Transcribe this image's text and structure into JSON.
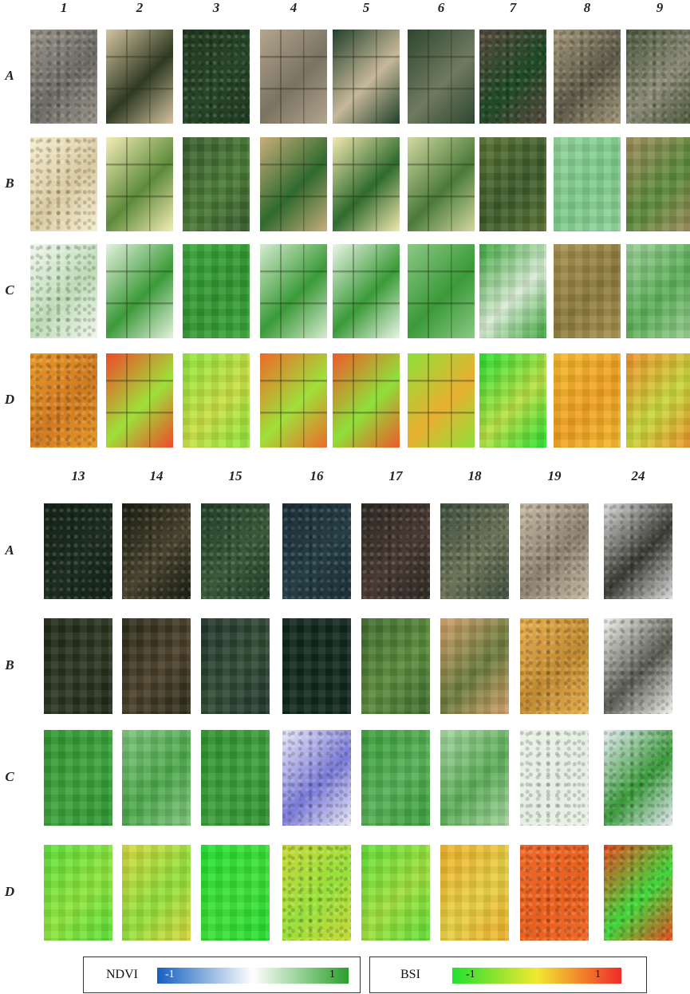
{
  "top_panel": {
    "columns": [
      "1",
      "2",
      "3",
      "4",
      "5",
      "6",
      "7",
      "8",
      "9"
    ],
    "rows": [
      "A",
      "B",
      "C",
      "D"
    ],
    "tiles": {
      "A": [
        {
          "c1": "#9a968c",
          "c2": "#6e6c66",
          "tex": "spk"
        },
        {
          "c1": "#d4c3a0",
          "c2": "#2e3a22",
          "tex": "fld"
        },
        {
          "c1": "#1f3a20",
          "c2": "#284628",
          "tex": "spk"
        },
        {
          "c1": "#b3a58e",
          "c2": "#7a7262",
          "tex": "fld"
        },
        {
          "c1": "#20402a",
          "c2": "#c7b89a",
          "tex": "fld"
        },
        {
          "c1": "#2e4630",
          "c2": "#6f7a60",
          "tex": "fld"
        },
        {
          "c1": "#5a4a40",
          "c2": "#1f4a25",
          "tex": "spk"
        },
        {
          "c1": "#a69a7c",
          "c2": "#5d5a48",
          "tex": "spk"
        },
        {
          "c1": "#4e5a3e",
          "c2": "#8c8c78",
          "tex": "spk"
        }
      ],
      "B": [
        {
          "c1": "#f7efd2",
          "c2": "#d9caa0",
          "tex": "spk"
        },
        {
          "c1": "#f4edb6",
          "c2": "#5d8a3a",
          "tex": "fld"
        },
        {
          "c1": "#355a2a",
          "c2": "#4a7a36",
          "tex": "pix"
        },
        {
          "c1": "#c8ad7a",
          "c2": "#2f6a2e",
          "tex": "fld"
        },
        {
          "c1": "#f2e8b0",
          "c2": "#2f6a2e",
          "tex": "fld"
        },
        {
          "c1": "#d2d8a0",
          "c2": "#4a7a3a",
          "tex": "fld"
        },
        {
          "c1": "#5a7030",
          "c2": "#3a5a28",
          "tex": "pix"
        },
        {
          "c1": "#8fd39a",
          "c2": "#7ecb8a",
          "tex": "pix"
        },
        {
          "c1": "#9e8a5a",
          "c2": "#5a8a3a",
          "tex": "pix"
        }
      ],
      "C": [
        {
          "c1": "#f2f7ef",
          "c2": "#bcdcb4",
          "tex": "spk"
        },
        {
          "c1": "#e4f1de",
          "c2": "#3c9a3a",
          "tex": "fld"
        },
        {
          "c1": "#3aa63a",
          "c2": "#2e962e",
          "tex": "pix"
        },
        {
          "c1": "#d6ebd0",
          "c2": "#3a9a38",
          "tex": "fld"
        },
        {
          "c1": "#eaf4e6",
          "c2": "#3a9a38",
          "tex": "fld"
        },
        {
          "c1": "#8cc886",
          "c2": "#3a9a38",
          "tex": "fld"
        },
        {
          "c1": "#3aa63a",
          "c2": "#d8ecd4",
          "tex": "pix"
        },
        {
          "c1": "#a8904e",
          "c2": "#8c7a3a",
          "tex": "pix"
        },
        {
          "c1": "#9ccf96",
          "c2": "#5aaf56",
          "tex": "pix"
        }
      ],
      "D": [
        {
          "c1": "#e89a2a",
          "c2": "#d07a20",
          "tex": "spk"
        },
        {
          "c1": "#ee4a2a",
          "c2": "#9ee03a",
          "tex": "fld"
        },
        {
          "c1": "#8ee83a",
          "c2": "#c8e040",
          "tex": "pix"
        },
        {
          "c1": "#ee6a2a",
          "c2": "#9ee03a",
          "tex": "fld"
        },
        {
          "c1": "#ee5a2a",
          "c2": "#8ee03a",
          "tex": "fld"
        },
        {
          "c1": "#8ee03a",
          "c2": "#e8b030",
          "tex": "fld"
        },
        {
          "c1": "#22e030",
          "c2": "#b8e040",
          "tex": "pix"
        },
        {
          "c1": "#f5b82a",
          "c2": "#f0a020",
          "tex": "pix"
        },
        {
          "c1": "#f0902a",
          "c2": "#c8d838",
          "tex": "pix"
        }
      ]
    }
  },
  "bottom_panel": {
    "columns": [
      "13",
      "14",
      "15",
      "16",
      "17",
      "18",
      "19",
      "24"
    ],
    "rows": [
      "A",
      "B",
      "C",
      "D"
    ],
    "tiles": {
      "A": [
        {
          "c1": "#142218",
          "c2": "#1e2e20",
          "tex": "spk"
        },
        {
          "c1": "#1a1e12",
          "c2": "#4a4430",
          "tex": "spk"
        },
        {
          "c1": "#24402a",
          "c2": "#3a5a3a",
          "tex": "spk"
        },
        {
          "c1": "#1c3038",
          "c2": "#263e46",
          "tex": "spk"
        },
        {
          "c1": "#2e2a24",
          "c2": "#4a3a34",
          "tex": "spk"
        },
        {
          "c1": "#3e5040",
          "c2": "#6e7458",
          "tex": "spk"
        },
        {
          "c1": "#c8bca6",
          "c2": "#8e8270",
          "tex": "spk"
        },
        {
          "c1": "#dcdcdc",
          "c2": "#3a3a34",
          "tex": "spk"
        }
      ],
      "B": [
        {
          "c1": "#1e2816",
          "c2": "#2a3420",
          "tex": "pix"
        },
        {
          "c1": "#2a2a18",
          "c2": "#4a3e28",
          "tex": "pix"
        },
        {
          "c1": "#22342a",
          "c2": "#2e4a32",
          "tex": "pix"
        },
        {
          "c1": "#0e2418",
          "c2": "#10281c",
          "tex": "pix"
        },
        {
          "c1": "#3e6a2e",
          "c2": "#5a8a3a",
          "tex": "pix"
        },
        {
          "c1": "#d4a06a",
          "c2": "#6a7a3a",
          "tex": "pix"
        },
        {
          "c1": "#e8b050",
          "c2": "#c08a30",
          "tex": "spk"
        },
        {
          "c1": "#f2f2ee",
          "c2": "#5a5a52",
          "tex": "spk"
        }
      ],
      "C": [
        {
          "c1": "#2e962e",
          "c2": "#3aa23a",
          "tex": "pix"
        },
        {
          "c1": "#7ec47a",
          "c2": "#4aa84a",
          "tex": "pix"
        },
        {
          "c1": "#2e922e",
          "c2": "#3aa03a",
          "tex": "pix"
        },
        {
          "c1": "#e8e8f6",
          "c2": "#7a7ad8",
          "tex": "spk"
        },
        {
          "c1": "#3a9e3a",
          "c2": "#54b054",
          "tex": "pix"
        },
        {
          "c1": "#a6d6a0",
          "c2": "#5aae56",
          "tex": "pix"
        },
        {
          "c1": "#eaf2e8",
          "c2": "#e4eee2",
          "tex": "spk"
        },
        {
          "c1": "#e6ecf4",
          "c2": "#3a9a3a",
          "tex": "spk"
        }
      ],
      "D": [
        {
          "c1": "#5ae036",
          "c2": "#8ee63a",
          "tex": "pix"
        },
        {
          "c1": "#d8d83a",
          "c2": "#90e03a",
          "tex": "pix"
        },
        {
          "c1": "#22e030",
          "c2": "#3ae034",
          "tex": "pix"
        },
        {
          "c1": "#c8d83a",
          "c2": "#98e03a",
          "tex": "spk"
        },
        {
          "c1": "#60e036",
          "c2": "#9ee03a",
          "tex": "pix"
        },
        {
          "c1": "#f0b02a",
          "c2": "#e8d040",
          "tex": "pix"
        },
        {
          "c1": "#f06a2a",
          "c2": "#e8601e",
          "tex": "spk"
        },
        {
          "c1": "#e84a1e",
          "c2": "#40d83a",
          "tex": "spk"
        }
      ]
    }
  },
  "legend_ndvi": {
    "title": "NDVI",
    "min_label": "-1",
    "max_label": "1",
    "colors": [
      "#1560c0",
      "#ffffff",
      "#2aa02a"
    ]
  },
  "legend_bsi": {
    "title": "BSI",
    "min_label": "-1",
    "max_label": "1",
    "colors": [
      "#22e030",
      "#f2e830",
      "#f02a2a"
    ]
  }
}
